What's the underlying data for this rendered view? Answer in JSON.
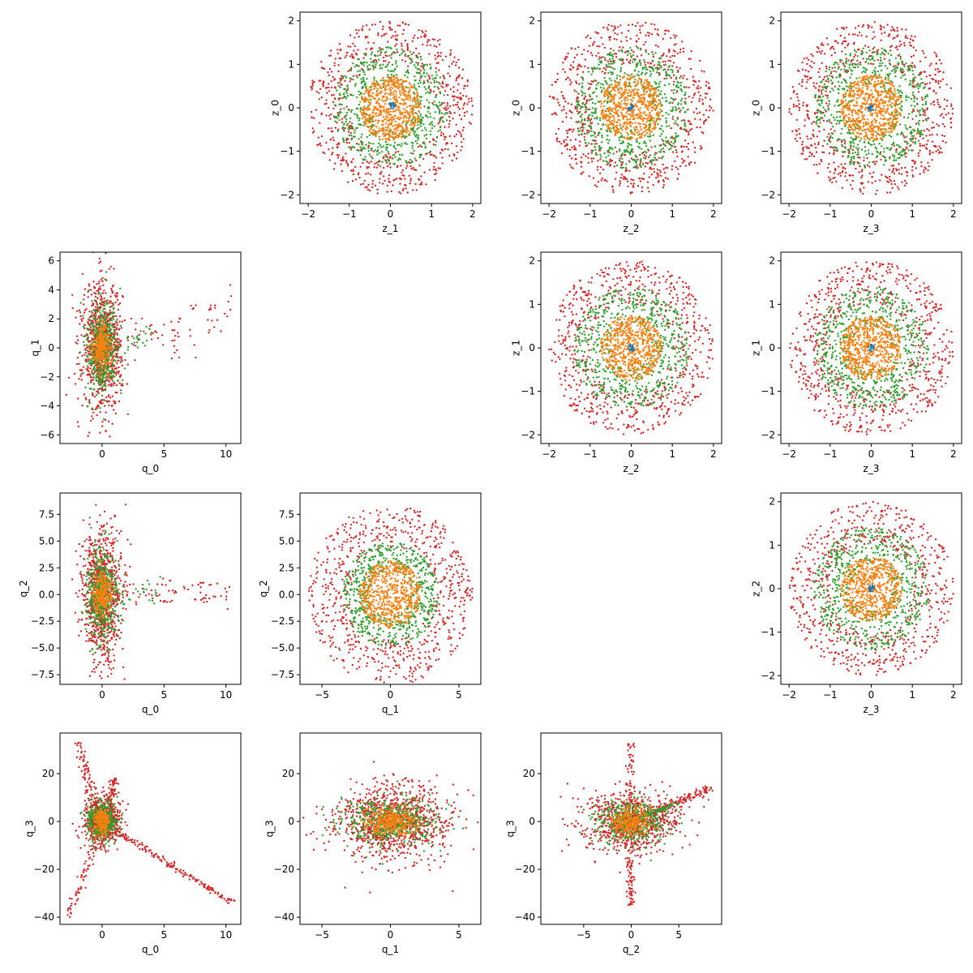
{
  "figure": {
    "background": "#ffffff"
  },
  "colors": {
    "blue": "#1f77b4",
    "orange": "#ff7f0e",
    "green": "#2ca02c",
    "red": "#d62728"
  },
  "chart_data": [
    {
      "id": "z1_z0",
      "type": "scatter",
      "xlabel": "z_1",
      "ylabel": "z_0",
      "xlim": [
        -2.2,
        2.2
      ],
      "ylim": [
        -2.2,
        2.2
      ],
      "xticks": [
        -2,
        -1,
        0,
        1,
        2
      ],
      "yticks": [
        -2,
        -1,
        0,
        1,
        2
      ],
      "series": [
        {
          "color": "#d62728",
          "distribution": "annulus",
          "center": [
            0,
            0
          ],
          "r": [
            1.0,
            2.0
          ],
          "count": 700
        },
        {
          "color": "#2ca02c",
          "distribution": "annulus",
          "center": [
            0,
            0
          ],
          "r": [
            0.5,
            1.4
          ],
          "count": 600
        },
        {
          "color": "#ff7f0e",
          "distribution": "disk",
          "center": [
            0,
            0
          ],
          "r": [
            0,
            0.75
          ],
          "count": 600
        },
        {
          "color": "#1f77b4",
          "distribution": "disk",
          "center": [
            0.05,
            0.05
          ],
          "r": [
            0,
            0.08
          ],
          "count": 20
        }
      ]
    },
    {
      "id": "z2_z0",
      "type": "scatter",
      "xlabel": "z_2",
      "ylabel": "z_0",
      "xlim": [
        -2.2,
        2.2
      ],
      "ylim": [
        -2.2,
        2.2
      ],
      "xticks": [
        -2,
        -1,
        0,
        1,
        2
      ],
      "yticks": [
        -2,
        -1,
        0,
        1,
        2
      ],
      "series": [
        {
          "color": "#d62728",
          "distribution": "annulus",
          "center": [
            0,
            0
          ],
          "r": [
            1.0,
            2.0
          ],
          "count": 700
        },
        {
          "color": "#2ca02c",
          "distribution": "annulus",
          "center": [
            0,
            0
          ],
          "r": [
            0.5,
            1.4
          ],
          "count": 600
        },
        {
          "color": "#ff7f0e",
          "distribution": "disk",
          "center": [
            0,
            0
          ],
          "r": [
            0,
            0.75
          ],
          "count": 600
        },
        {
          "color": "#1f77b4",
          "distribution": "disk",
          "center": [
            0,
            0
          ],
          "r": [
            0,
            0.08
          ],
          "count": 20
        }
      ]
    },
    {
      "id": "z3_z0",
      "type": "scatter",
      "xlabel": "z_3",
      "ylabel": "z_0",
      "xlim": [
        -2.2,
        2.2
      ],
      "ylim": [
        -2.2,
        2.2
      ],
      "xticks": [
        -2,
        -1,
        0,
        1,
        2
      ],
      "yticks": [
        -2,
        -1,
        0,
        1,
        2
      ],
      "series": [
        {
          "color": "#d62728",
          "distribution": "annulus",
          "center": [
            0,
            0
          ],
          "r": [
            1.0,
            2.0
          ],
          "count": 700
        },
        {
          "color": "#2ca02c",
          "distribution": "annulus",
          "center": [
            0,
            0
          ],
          "r": [
            0.5,
            1.4
          ],
          "count": 600
        },
        {
          "color": "#ff7f0e",
          "distribution": "disk",
          "center": [
            0,
            0
          ],
          "r": [
            0,
            0.75
          ],
          "count": 600
        },
        {
          "color": "#1f77b4",
          "distribution": "disk",
          "center": [
            0,
            0
          ],
          "r": [
            0,
            0.08
          ],
          "count": 20
        }
      ]
    },
    {
      "id": "q0_q1",
      "type": "scatter",
      "xlabel": "q_0",
      "ylabel": "q_1",
      "xlim": [
        -3.4,
        11.2
      ],
      "ylim": [
        -6.6,
        6.6
      ],
      "xticks": [
        0,
        5,
        10
      ],
      "yticks": [
        -6,
        -4,
        -2,
        0,
        2,
        4,
        6
      ],
      "series": [
        {
          "color": "#d62728",
          "distribution": "gauss",
          "center": [
            0,
            0
          ],
          "sd": [
            0.8,
            2.2
          ],
          "count": 900
        },
        {
          "color": "#d62728",
          "distribution": "tail",
          "from": [
            1,
            0
          ],
          "to": [
            10.5,
            2.6
          ],
          "spread": 1.6,
          "count": 70
        },
        {
          "color": "#2ca02c",
          "distribution": "gauss",
          "center": [
            0,
            0
          ],
          "sd": [
            0.6,
            1.6
          ],
          "count": 500
        },
        {
          "color": "#2ca02c",
          "distribution": "tail",
          "from": [
            1,
            0
          ],
          "to": [
            4,
            1
          ],
          "spread": 0.8,
          "count": 25
        },
        {
          "color": "#ff7f0e",
          "distribution": "gauss",
          "center": [
            0,
            0
          ],
          "sd": [
            0.35,
            0.7
          ],
          "count": 250
        }
      ]
    },
    {
      "id": "z2_z1",
      "type": "scatter",
      "xlabel": "z_2",
      "ylabel": "z_1",
      "xlim": [
        -2.2,
        2.2
      ],
      "ylim": [
        -2.2,
        2.2
      ],
      "xticks": [
        -2,
        -1,
        0,
        1,
        2
      ],
      "yticks": [
        -2,
        -1,
        0,
        1,
        2
      ],
      "series": [
        {
          "color": "#d62728",
          "distribution": "annulus",
          "center": [
            0,
            0
          ],
          "r": [
            1.0,
            2.0
          ],
          "count": 700
        },
        {
          "color": "#2ca02c",
          "distribution": "annulus",
          "center": [
            0,
            0
          ],
          "r": [
            0.5,
            1.4
          ],
          "count": 600
        },
        {
          "color": "#ff7f0e",
          "distribution": "disk",
          "center": [
            0,
            0
          ],
          "r": [
            0,
            0.75
          ],
          "count": 600
        },
        {
          "color": "#1f77b4",
          "distribution": "disk",
          "center": [
            0,
            0
          ],
          "r": [
            0,
            0.08
          ],
          "count": 20
        }
      ]
    },
    {
      "id": "z3_z1",
      "type": "scatter",
      "xlabel": "z_3",
      "ylabel": "z_1",
      "xlim": [
        -2.2,
        2.2
      ],
      "ylim": [
        -2.2,
        2.2
      ],
      "xticks": [
        -2,
        -1,
        0,
        1,
        2
      ],
      "yticks": [
        -2,
        -1,
        0,
        1,
        2
      ],
      "series": [
        {
          "color": "#d62728",
          "distribution": "annulus",
          "center": [
            0,
            0
          ],
          "r": [
            1.0,
            2.0
          ],
          "count": 700
        },
        {
          "color": "#2ca02c",
          "distribution": "annulus",
          "center": [
            0,
            0
          ],
          "r": [
            0.5,
            1.4
          ],
          "count": 600
        },
        {
          "color": "#ff7f0e",
          "distribution": "disk",
          "center": [
            0,
            0
          ],
          "r": [
            0,
            0.75
          ],
          "count": 600
        },
        {
          "color": "#1f77b4",
          "distribution": "disk",
          "center": [
            0,
            0
          ],
          "r": [
            0,
            0.08
          ],
          "count": 20
        }
      ]
    },
    {
      "id": "q0_q2",
      "type": "scatter",
      "xlabel": "q_0",
      "ylabel": "q_2",
      "xlim": [
        -3.4,
        11.2
      ],
      "ylim": [
        -8.4,
        9.5
      ],
      "xticks": [
        0,
        5,
        10
      ],
      "yticks": [
        -7.5,
        -5.0,
        -2.5,
        0.0,
        2.5,
        5.0,
        7.5
      ],
      "series": [
        {
          "color": "#d62728",
          "distribution": "gauss",
          "center": [
            0,
            0
          ],
          "sd": [
            0.8,
            3.0
          ],
          "count": 900
        },
        {
          "color": "#d62728",
          "distribution": "tail",
          "from": [
            1,
            0
          ],
          "to": [
            10.5,
            0
          ],
          "spread": 1.5,
          "count": 70
        },
        {
          "color": "#2ca02c",
          "distribution": "gauss",
          "center": [
            0,
            0
          ],
          "sd": [
            0.6,
            2.2
          ],
          "count": 500
        },
        {
          "color": "#2ca02c",
          "distribution": "tail",
          "from": [
            1,
            0
          ],
          "to": [
            5,
            0.5
          ],
          "spread": 1.0,
          "count": 25
        },
        {
          "color": "#ff7f0e",
          "distribution": "gauss",
          "center": [
            0,
            0
          ],
          "sd": [
            0.35,
            1.0
          ],
          "count": 250
        }
      ]
    },
    {
      "id": "q1_q2",
      "type": "scatter",
      "xlabel": "q_1",
      "ylabel": "q_2",
      "xlim": [
        -6.6,
        6.6
      ],
      "ylim": [
        -8.4,
        9.5
      ],
      "xticks": [
        -5,
        0,
        5
      ],
      "yticks": [
        -7.5,
        -5.0,
        -2.5,
        0.0,
        2.5,
        5.0,
        7.5
      ],
      "series": [
        {
          "color": "#d62728",
          "distribution": "annulus",
          "center": [
            0,
            0
          ],
          "r": [
            0.5,
            1.0
          ],
          "scale": [
            6.0,
            8.5
          ],
          "count": 700
        },
        {
          "color": "#2ca02c",
          "distribution": "annulus",
          "center": [
            0,
            0
          ],
          "r": [
            0.3,
            0.7
          ],
          "scale": [
            5.0,
            7.0
          ],
          "count": 600
        },
        {
          "color": "#ff7f0e",
          "distribution": "disk",
          "center": [
            0,
            0
          ],
          "r": [
            0,
            0.45
          ],
          "scale": [
            5.0,
            7.0
          ],
          "count": 600
        }
      ]
    },
    {
      "id": "z3_z2",
      "type": "scatter",
      "xlabel": "z_3",
      "ylabel": "z_2",
      "xlim": [
        -2.2,
        2.2
      ],
      "ylim": [
        -2.2,
        2.2
      ],
      "xticks": [
        -2,
        -1,
        0,
        1,
        2
      ],
      "yticks": [
        -2,
        -1,
        0,
        1,
        2
      ],
      "series": [
        {
          "color": "#d62728",
          "distribution": "annulus",
          "center": [
            0,
            0
          ],
          "r": [
            1.0,
            2.0
          ],
          "count": 700
        },
        {
          "color": "#2ca02c",
          "distribution": "annulus",
          "center": [
            0,
            0
          ],
          "r": [
            0.5,
            1.4
          ],
          "count": 600
        },
        {
          "color": "#ff7f0e",
          "distribution": "disk",
          "center": [
            0,
            0
          ],
          "r": [
            0,
            0.75
          ],
          "count": 600
        },
        {
          "color": "#1f77b4",
          "distribution": "disk",
          "center": [
            0,
            0
          ],
          "r": [
            0,
            0.08
          ],
          "count": 20
        }
      ]
    },
    {
      "id": "q0_q3",
      "type": "scatter",
      "xlabel": "q_0",
      "ylabel": "q_3",
      "xlim": [
        -3.4,
        11.2
      ],
      "ylim": [
        -43,
        37
      ],
      "xticks": [
        0,
        5,
        10
      ],
      "yticks": [
        -40,
        -20,
        0,
        20
      ],
      "series": [
        {
          "color": "#d62728",
          "distribution": "gauss",
          "center": [
            0,
            0
          ],
          "sd": [
            0.7,
            5.0
          ],
          "count": 700
        },
        {
          "color": "#d62728",
          "distribution": "tail",
          "from": [
            0.5,
            -2
          ],
          "to": [
            10.5,
            -34
          ],
          "spread": 1.2,
          "count": 160
        },
        {
          "color": "#d62728",
          "distribution": "tail",
          "from": [
            -0.5,
            5
          ],
          "to": [
            -1.9,
            33
          ],
          "spread": 1.5,
          "count": 80
        },
        {
          "color": "#d62728",
          "distribution": "tail",
          "from": [
            -0.5,
            -8
          ],
          "to": [
            -2.8,
            -40
          ],
          "spread": 1.5,
          "count": 60
        },
        {
          "color": "#d62728",
          "distribution": "tail",
          "from": [
            0.5,
            5
          ],
          "to": [
            1,
            18
          ],
          "spread": 1.3,
          "count": 60
        },
        {
          "color": "#2ca02c",
          "distribution": "gauss",
          "center": [
            0,
            0
          ],
          "sd": [
            0.6,
            4.0
          ],
          "count": 400
        },
        {
          "color": "#ff7f0e",
          "distribution": "gauss",
          "center": [
            0,
            0
          ],
          "sd": [
            0.3,
            2.5
          ],
          "count": 200
        }
      ]
    },
    {
      "id": "q1_q3",
      "type": "scatter",
      "xlabel": "q_1",
      "ylabel": "q_3",
      "xlim": [
        -6.6,
        6.6
      ],
      "ylim": [
        -43,
        37
      ],
      "xticks": [
        -5,
        0,
        5
      ],
      "yticks": [
        -40,
        -20,
        0,
        20
      ],
      "series": [
        {
          "color": "#d62728",
          "distribution": "gauss",
          "center": [
            0,
            0
          ],
          "sd": [
            2.2,
            8.0
          ],
          "count": 1000
        },
        {
          "color": "#2ca02c",
          "distribution": "gauss",
          "center": [
            0,
            0
          ],
          "sd": [
            1.8,
            5.0
          ],
          "count": 500
        },
        {
          "color": "#ff7f0e",
          "distribution": "gauss",
          "center": [
            0,
            0
          ],
          "sd": [
            0.9,
            3.0
          ],
          "count": 300
        }
      ]
    },
    {
      "id": "q2_q3",
      "type": "scatter",
      "xlabel": "q_2",
      "ylabel": "q_3",
      "xlim": [
        -9.5,
        9.5
      ],
      "ylim": [
        -43,
        37
      ],
      "xticks": [
        -5,
        0,
        5
      ],
      "yticks": [
        -40,
        -20,
        0,
        20
      ],
      "series": [
        {
          "color": "#d62728",
          "distribution": "gauss",
          "center": [
            0,
            0
          ],
          "sd": [
            2.5,
            6.0
          ],
          "count": 800
        },
        {
          "color": "#d62728",
          "distribution": "tail",
          "from": [
            0,
            0
          ],
          "to": [
            8.5,
            14
          ],
          "spread": 2.0,
          "count": 150
        },
        {
          "color": "#d62728",
          "distribution": "tail",
          "from": [
            0,
            -5
          ],
          "to": [
            0,
            -35
          ],
          "spread": 1.8,
          "count": 80
        },
        {
          "color": "#d62728",
          "distribution": "tail",
          "from": [
            0,
            5
          ],
          "to": [
            0,
            33
          ],
          "spread": 1.8,
          "count": 60
        },
        {
          "color": "#2ca02c",
          "distribution": "gauss",
          "center": [
            0,
            0
          ],
          "sd": [
            2.0,
            4.5
          ],
          "count": 400
        },
        {
          "color": "#2ca02c",
          "distribution": "tail",
          "from": [
            0,
            0
          ],
          "to": [
            5,
            8
          ],
          "spread": 1.0,
          "count": 60
        },
        {
          "color": "#ff7f0e",
          "distribution": "gauss",
          "center": [
            0,
            0
          ],
          "sd": [
            1.0,
            3.0
          ],
          "count": 250
        }
      ]
    }
  ]
}
